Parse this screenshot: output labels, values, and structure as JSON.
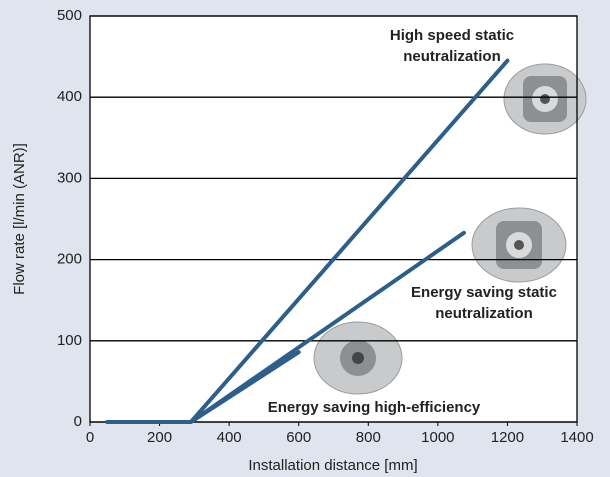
{
  "chart_data": {
    "type": "line",
    "xlabel": "Installation distance [mm]",
    "ylabel": "Flow rate [l/min (ANR)]",
    "xlim": [
      0,
      1400
    ],
    "xticks": [
      0,
      200,
      400,
      600,
      800,
      1000,
      1200,
      1400
    ],
    "ylim": [
      0,
      500
    ],
    "yticks": [
      0,
      100,
      200,
      300,
      400,
      500
    ],
    "grid": true,
    "series": [
      {
        "name_lines": [
          "High speed static",
          "neutralization"
        ],
        "color": "#2e5f8a",
        "x": [
          50,
          290,
          1200
        ],
        "values": [
          0,
          0,
          445
        ]
      },
      {
        "name_lines": [
          "Energy saving static",
          "neutralization"
        ],
        "color": "#2e5f8a",
        "x": [
          50,
          290,
          1075
        ],
        "values": [
          0,
          0,
          233
        ]
      },
      {
        "name_lines": [
          "Energy saving high-efficiency"
        ],
        "color": "#2e5f8a",
        "x": [
          50,
          290,
          600
        ],
        "values": [
          0,
          0,
          86
        ]
      }
    ]
  }
}
